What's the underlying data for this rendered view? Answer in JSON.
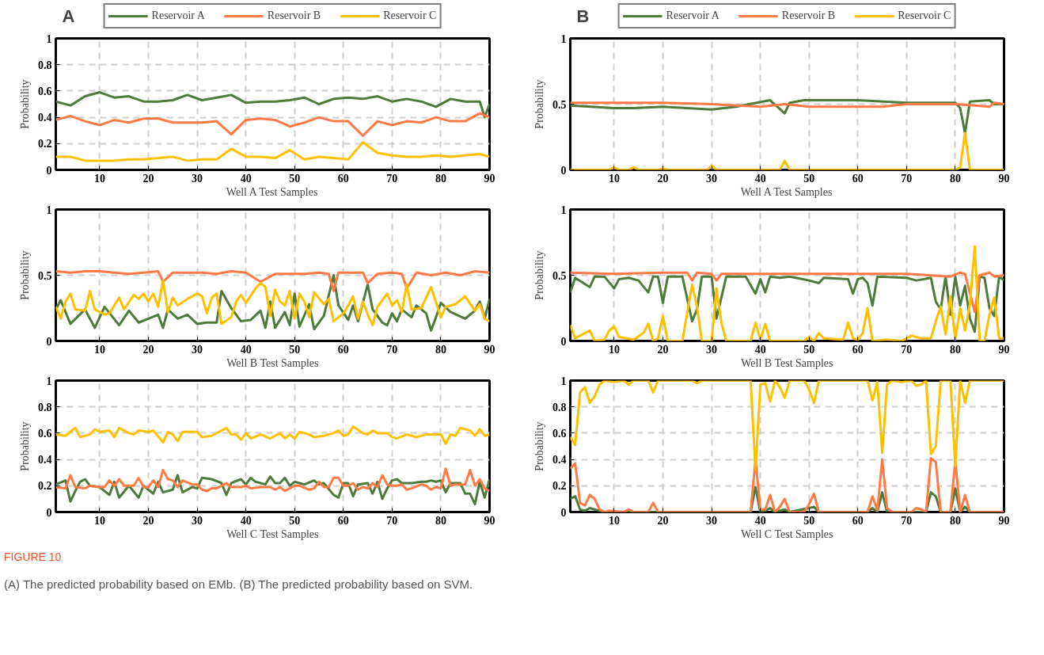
{
  "chart_data": [
    {
      "type": "line",
      "title": "A",
      "xlabel": "Well A Test Samples",
      "ylabel": "Probability",
      "xlim": [
        1,
        90
      ],
      "ylim": [
        0,
        1
      ],
      "xticks": [
        10,
        20,
        30,
        40,
        50,
        60,
        70,
        80,
        90
      ],
      "yticks": [
        0,
        0.2,
        0.4,
        0.6,
        0.8,
        1
      ],
      "grid": true,
      "legend": "top",
      "annotations": [
        "FIGURE 10",
        "(A) The predicted probability based on EMb. (B) The predicted probability based on SVM."
      ],
      "series": [
        {
          "name": "Reservoir A",
          "color": "#4e7a3c",
          "x": [
            1,
            4,
            7,
            10,
            13,
            16,
            19,
            22,
            25,
            28,
            31,
            34,
            37,
            40,
            43,
            46,
            49,
            52,
            55,
            58,
            61,
            64,
            67,
            70,
            73,
            76,
            79,
            82,
            85,
            88,
            89,
            90
          ],
          "values": [
            0.52,
            0.49,
            0.56,
            0.59,
            0.55,
            0.56,
            0.52,
            0.52,
            0.53,
            0.57,
            0.53,
            0.55,
            0.57,
            0.51,
            0.52,
            0.52,
            0.53,
            0.55,
            0.5,
            0.54,
            0.55,
            0.54,
            0.56,
            0.52,
            0.54,
            0.52,
            0.48,
            0.54,
            0.52,
            0.52,
            0.4,
            0.5
          ]
        },
        {
          "name": "Reservoir B",
          "color": "#ff7a45",
          "x": [
            1,
            4,
            7,
            10,
            13,
            16,
            19,
            22,
            25,
            28,
            31,
            34,
            37,
            40,
            43,
            46,
            49,
            52,
            55,
            58,
            61,
            64,
            67,
            70,
            73,
            76,
            79,
            82,
            85,
            88,
            90
          ],
          "values": [
            0.38,
            0.41,
            0.37,
            0.34,
            0.38,
            0.36,
            0.39,
            0.39,
            0.36,
            0.36,
            0.36,
            0.37,
            0.27,
            0.38,
            0.39,
            0.38,
            0.33,
            0.36,
            0.4,
            0.37,
            0.37,
            0.26,
            0.37,
            0.34,
            0.37,
            0.36,
            0.4,
            0.37,
            0.37,
            0.43,
            0.4
          ]
        },
        {
          "name": "Reservoir C",
          "color": "#ffc000",
          "x": [
            1,
            4,
            7,
            10,
            13,
            16,
            19,
            22,
            25,
            28,
            31,
            34,
            37,
            40,
            43,
            46,
            49,
            52,
            55,
            58,
            61,
            64,
            67,
            70,
            73,
            76,
            79,
            82,
            85,
            88,
            90
          ],
          "values": [
            0.1,
            0.1,
            0.07,
            0.07,
            0.07,
            0.08,
            0.08,
            0.09,
            0.1,
            0.07,
            0.08,
            0.08,
            0.16,
            0.1,
            0.1,
            0.09,
            0.15,
            0.08,
            0.1,
            0.09,
            0.08,
            0.21,
            0.13,
            0.11,
            0.1,
            0.1,
            0.11,
            0.1,
            0.11,
            0.12,
            0.1
          ]
        }
      ]
    },
    {
      "type": "line",
      "title": "B",
      "xlabel": "Well A Test Samples",
      "ylabel": "Probability",
      "xlim": [
        1,
        90
      ],
      "ylim": [
        0,
        1
      ],
      "xticks": [
        10,
        20,
        30,
        40,
        50,
        60,
        70,
        80,
        90
      ],
      "yticks": [
        0,
        0.5,
        1
      ],
      "grid": true,
      "legend": "top",
      "series": [
        {
          "name": "Reservoir A",
          "color": "#4e7a3c",
          "x": [
            1,
            10,
            14,
            20,
            30,
            35,
            42,
            45,
            46,
            49,
            60,
            70,
            80,
            81,
            82,
            83,
            87,
            88,
            90
          ],
          "values": [
            0.49,
            0.47,
            0.47,
            0.48,
            0.46,
            0.48,
            0.53,
            0.43,
            0.51,
            0.53,
            0.53,
            0.51,
            0.51,
            0.47,
            0.28,
            0.52,
            0.53,
            0.5,
            0.5
          ]
        },
        {
          "name": "Reservoir B",
          "color": "#ff7a45",
          "x": [
            1,
            10,
            20,
            30,
            40,
            45,
            50,
            60,
            65,
            70,
            80,
            84,
            87,
            88,
            90
          ],
          "values": [
            0.51,
            0.51,
            0.51,
            0.5,
            0.48,
            0.5,
            0.48,
            0.48,
            0.48,
            0.5,
            0.5,
            0.49,
            0.48,
            0.51,
            0.5
          ]
        },
        {
          "name": "Reservoir C",
          "color": "#ffc000",
          "x": [
            1,
            9,
            10,
            11,
            13,
            14,
            15,
            19,
            20,
            21,
            29,
            30,
            31,
            44,
            45,
            46,
            80,
            81,
            82,
            83,
            90
          ],
          "values": [
            0,
            0,
            0.02,
            0,
            0,
            0.02,
            0,
            0,
            0.01,
            0,
            0,
            0.03,
            0,
            0,
            0.07,
            0,
            0,
            0.02,
            0.28,
            0,
            0
          ]
        }
      ]
    },
    {
      "type": "line",
      "xlabel": "Well B Test Samples",
      "ylabel": "Probability",
      "xlim": [
        1,
        90
      ],
      "ylim": [
        0,
        1
      ],
      "xticks": [
        10,
        20,
        30,
        40,
        50,
        60,
        70,
        80,
        90
      ],
      "yticks": [
        0,
        0.5,
        1
      ],
      "grid": true,
      "series": [
        {
          "color": "#4e7a3c",
          "x": [
            1,
            2,
            4,
            7,
            9,
            11,
            14,
            16,
            18,
            20,
            22,
            23,
            24,
            26,
            28,
            30,
            32,
            34,
            35,
            37,
            39,
            41,
            43,
            44,
            45,
            46,
            48,
            49,
            50,
            51,
            53,
            54,
            56,
            58,
            59,
            61,
            62,
            63,
            65,
            66,
            68,
            69,
            70,
            71,
            72,
            74,
            75,
            77,
            78,
            79,
            80,
            82,
            85,
            87,
            88,
            89,
            90
          ],
          "values": [
            0.24,
            0.31,
            0.13,
            0.24,
            0.1,
            0.26,
            0.12,
            0.23,
            0.14,
            0.17,
            0.2,
            0.1,
            0.24,
            0.17,
            0.2,
            0.13,
            0.14,
            0.14,
            0.38,
            0.25,
            0.15,
            0.16,
            0.23,
            0.1,
            0.3,
            0.1,
            0.22,
            0.12,
            0.36,
            0.11,
            0.28,
            0.09,
            0.19,
            0.5,
            0.27,
            0.16,
            0.27,
            0.15,
            0.43,
            0.24,
            0.14,
            0.12,
            0.21,
            0.15,
            0.24,
            0.18,
            0.27,
            0.21,
            0.08,
            0.18,
            0.29,
            0.22,
            0.17,
            0.23,
            0.3,
            0.17,
            0.32
          ]
        },
        {
          "color": "#ff7a45",
          "x": [
            1,
            4,
            7,
            10,
            13,
            16,
            19,
            22,
            23,
            25,
            28,
            31,
            34,
            37,
            40,
            43,
            46,
            49,
            52,
            55,
            57,
            58,
            59,
            62,
            64,
            65,
            67,
            70,
            72,
            73,
            75,
            78,
            81,
            84,
            87,
            90
          ],
          "values": [
            0.53,
            0.52,
            0.53,
            0.53,
            0.52,
            0.51,
            0.52,
            0.53,
            0.45,
            0.52,
            0.52,
            0.52,
            0.51,
            0.53,
            0.52,
            0.45,
            0.51,
            0.51,
            0.51,
            0.52,
            0.51,
            0.38,
            0.52,
            0.52,
            0.52,
            0.44,
            0.51,
            0.52,
            0.51,
            0.4,
            0.52,
            0.5,
            0.52,
            0.5,
            0.53,
            0.52
          ]
        },
        {
          "color": "#ffc000",
          "x": [
            1,
            2,
            3,
            4,
            5,
            7,
            8,
            9,
            11,
            12,
            14,
            15,
            17,
            18,
            19,
            20,
            21,
            22,
            23,
            24,
            25,
            26,
            28,
            30,
            31,
            32,
            33,
            34,
            35,
            37,
            38,
            39,
            40,
            42,
            43,
            44,
            45,
            46,
            47,
            48,
            49,
            50,
            51,
            52,
            53,
            54,
            56,
            57,
            58,
            60,
            61,
            62,
            63,
            64,
            65,
            66,
            67,
            69,
            70,
            71,
            72,
            73,
            74,
            76,
            78,
            80,
            81,
            83,
            85,
            87,
            88,
            89,
            90
          ],
          "values": [
            0.26,
            0.17,
            0.3,
            0.36,
            0.24,
            0.23,
            0.38,
            0.24,
            0.2,
            0.21,
            0.33,
            0.24,
            0.35,
            0.32,
            0.36,
            0.3,
            0.36,
            0.26,
            0.46,
            0.22,
            0.33,
            0.27,
            0.32,
            0.36,
            0.34,
            0.21,
            0.33,
            0.36,
            0.13,
            0.18,
            0.3,
            0.35,
            0.29,
            0.4,
            0.44,
            0.41,
            0.19,
            0.39,
            0.3,
            0.27,
            0.38,
            0.17,
            0.36,
            0.3,
            0.18,
            0.37,
            0.28,
            0.32,
            0.15,
            0.21,
            0.27,
            0.34,
            0.17,
            0.3,
            0.2,
            0.12,
            0.26,
            0.36,
            0.27,
            0.31,
            0.22,
            0.43,
            0.24,
            0.25,
            0.41,
            0.18,
            0.26,
            0.28,
            0.34,
            0.23,
            0.28,
            0.17,
            0.15
          ]
        }
      ]
    },
    {
      "type": "line",
      "xlabel": "Well B Test Samples",
      "ylabel": "Probability",
      "xlim": [
        1,
        90
      ],
      "ylim": [
        0,
        1
      ],
      "xticks": [
        10,
        20,
        30,
        40,
        50,
        60,
        70,
        80,
        90
      ],
      "yticks": [
        0,
        0.5,
        1
      ],
      "grid": true,
      "series": [
        {
          "color": "#4e7a3c",
          "x": [
            1,
            2,
            5,
            6,
            8,
            10,
            11,
            13,
            15,
            17,
            18,
            19,
            20,
            21,
            24,
            26,
            27,
            28,
            30,
            31,
            33,
            37,
            39,
            40,
            41,
            42,
            44,
            46,
            50,
            52,
            53,
            58,
            59,
            60,
            61,
            62,
            63,
            64,
            70,
            72,
            75,
            76,
            77,
            78,
            79,
            80,
            81,
            82,
            83,
            84,
            85,
            86,
            87,
            88,
            89,
            90
          ],
          "values": [
            0.37,
            0.48,
            0.41,
            0.49,
            0.49,
            0.4,
            0.47,
            0.48,
            0.46,
            0.37,
            0.49,
            0.49,
            0.29,
            0.49,
            0.49,
            0.15,
            0.24,
            0.49,
            0.49,
            0.17,
            0.49,
            0.49,
            0.36,
            0.47,
            0.37,
            0.49,
            0.48,
            0.49,
            0.46,
            0.44,
            0.48,
            0.47,
            0.36,
            0.47,
            0.48,
            0.44,
            0.27,
            0.49,
            0.48,
            0.46,
            0.48,
            0.3,
            0.24,
            0.49,
            0.2,
            0.49,
            0.27,
            0.42,
            0.17,
            0.07,
            0.49,
            0.48,
            0.25,
            0.19,
            0.49,
            0.46
          ]
        },
        {
          "color": "#ff7a45",
          "x": [
            1,
            10,
            20,
            25,
            26,
            27,
            30,
            31,
            32,
            40,
            50,
            60,
            70,
            79,
            81,
            82,
            84,
            85,
            87,
            88,
            90
          ],
          "values": [
            0.52,
            0.51,
            0.52,
            0.52,
            0.46,
            0.52,
            0.51,
            0.46,
            0.51,
            0.51,
            0.51,
            0.51,
            0.51,
            0.49,
            0.52,
            0.51,
            0.22,
            0.5,
            0.52,
            0.49,
            0.5
          ]
        },
        {
          "color": "#ffc000",
          "x": [
            1,
            2,
            5,
            6,
            8,
            9,
            10,
            11,
            14,
            16,
            17,
            18,
            19,
            20,
            21,
            24,
            26,
            27,
            28,
            30,
            31,
            32,
            33,
            38,
            39,
            40,
            41,
            42,
            49,
            50,
            51,
            52,
            53,
            57,
            58,
            59,
            60,
            61,
            62,
            63,
            66,
            69,
            71,
            73,
            75,
            76,
            77,
            78,
            79,
            80,
            81,
            82,
            83,
            84,
            85,
            86,
            87,
            88,
            89,
            90
          ],
          "values": [
            0.12,
            0.02,
            0.08,
            0,
            0.01,
            0.08,
            0.11,
            0.03,
            0.01,
            0.06,
            0.13,
            0,
            0.02,
            0.19,
            0,
            0,
            0.43,
            0.26,
            0,
            0,
            0.4,
            0.14,
            0,
            0,
            0.14,
            0.01,
            0.13,
            0,
            0,
            0.03,
            0,
            0.06,
            0.02,
            0.01,
            0.14,
            0.02,
            0.01,
            0.06,
            0.25,
            0,
            0.01,
            0,
            0.04,
            0.02,
            0.02,
            0.15,
            0.26,
            0.05,
            0.34,
            0.01,
            0.25,
            0.08,
            0.28,
            0.72,
            0,
            0,
            0.2,
            0.33,
            0.02,
            0.02
          ]
        }
      ]
    },
    {
      "type": "line",
      "xlabel": "Well C Test Samples",
      "ylabel": "Probability",
      "xlim": [
        1,
        90
      ],
      "ylim": [
        0,
        1
      ],
      "xticks": [
        10,
        20,
        30,
        40,
        50,
        60,
        70,
        80,
        90
      ],
      "yticks": [
        0,
        0.2,
        0.4,
        0.6,
        0.8,
        1
      ],
      "grid": true,
      "series": [
        {
          "color": "#4e7a3c",
          "x": [
            1,
            3,
            4,
            5,
            6,
            7,
            8,
            10,
            12,
            13,
            14,
            16,
            18,
            19,
            21,
            22,
            23,
            25,
            26,
            27,
            29,
            30,
            31,
            33,
            35,
            36,
            37,
            39,
            40,
            41,
            42,
            44,
            45,
            46,
            47,
            48,
            49,
            50,
            52,
            54,
            55,
            56,
            58,
            59,
            60,
            61,
            62,
            63,
            65,
            66,
            67,
            68,
            69,
            70,
            71,
            72,
            74,
            76,
            77,
            78,
            79,
            80,
            81,
            82,
            84,
            85,
            86,
            87,
            88,
            89,
            90
          ],
          "values": [
            0.21,
            0.24,
            0.08,
            0.16,
            0.23,
            0.25,
            0.2,
            0.19,
            0.13,
            0.23,
            0.11,
            0.2,
            0.11,
            0.2,
            0.14,
            0.23,
            0.15,
            0.17,
            0.28,
            0.15,
            0.19,
            0.18,
            0.26,
            0.25,
            0.22,
            0.13,
            0.22,
            0.25,
            0.21,
            0.26,
            0.23,
            0.21,
            0.27,
            0.22,
            0.22,
            0.26,
            0.2,
            0.23,
            0.21,
            0.24,
            0.21,
            0.22,
            0.13,
            0.11,
            0.22,
            0.22,
            0.12,
            0.21,
            0.22,
            0.14,
            0.23,
            0.1,
            0.18,
            0.24,
            0.25,
            0.22,
            0.22,
            0.23,
            0.23,
            0.24,
            0.23,
            0.24,
            0.15,
            0.22,
            0.22,
            0.14,
            0.14,
            0.06,
            0.23,
            0.11,
            0.25
          ]
        },
        {
          "color": "#ff7a45",
          "x": [
            1,
            3,
            4,
            5,
            7,
            8,
            10,
            11,
            12,
            13,
            14,
            15,
            17,
            18,
            19,
            20,
            21,
            22,
            23,
            24,
            25,
            26,
            27,
            29,
            30,
            31,
            32,
            33,
            34,
            36,
            37,
            39,
            40,
            41,
            43,
            45,
            46,
            47,
            48,
            50,
            51,
            53,
            54,
            55,
            56,
            57,
            58,
            59,
            60,
            61,
            62,
            63,
            64,
            65,
            66,
            67,
            68,
            69,
            70,
            71,
            72,
            73,
            74,
            76,
            77,
            78,
            79,
            80,
            81,
            82,
            83,
            85,
            86,
            87,
            88,
            89,
            90
          ],
          "values": [
            0.19,
            0.18,
            0.28,
            0.19,
            0.18,
            0.2,
            0.19,
            0.19,
            0.24,
            0.2,
            0.25,
            0.2,
            0.2,
            0.26,
            0.19,
            0.19,
            0.24,
            0.19,
            0.32,
            0.25,
            0.24,
            0.19,
            0.24,
            0.21,
            0.21,
            0.17,
            0.16,
            0.18,
            0.18,
            0.22,
            0.19,
            0.19,
            0.2,
            0.18,
            0.19,
            0.19,
            0.17,
            0.19,
            0.16,
            0.2,
            0.2,
            0.17,
            0.18,
            0.23,
            0.19,
            0.19,
            0.26,
            0.26,
            0.2,
            0.2,
            0.22,
            0.17,
            0.19,
            0.18,
            0.22,
            0.19,
            0.28,
            0.21,
            0.2,
            0.2,
            0.21,
            0.17,
            0.18,
            0.21,
            0.2,
            0.17,
            0.19,
            0.18,
            0.33,
            0.2,
            0.21,
            0.21,
            0.32,
            0.2,
            0.25,
            0.18,
            0.16
          ]
        },
        {
          "color": "#ffc000",
          "x": [
            1,
            3,
            5,
            6,
            8,
            9,
            10,
            12,
            13,
            14,
            16,
            17,
            18,
            20,
            21,
            23,
            24,
            25,
            26,
            27,
            30,
            31,
            33,
            36,
            37,
            38,
            39,
            40,
            41,
            43,
            45,
            47,
            48,
            49,
            50,
            51,
            53,
            54,
            56,
            58,
            59,
            60,
            61,
            62,
            64,
            65,
            66,
            67,
            69,
            70,
            71,
            73,
            75,
            77,
            79,
            80,
            81,
            82,
            83,
            84,
            86,
            87,
            88,
            89,
            90
          ],
          "values": [
            0.59,
            0.58,
            0.64,
            0.57,
            0.59,
            0.63,
            0.61,
            0.62,
            0.57,
            0.64,
            0.6,
            0.59,
            0.62,
            0.61,
            0.62,
            0.53,
            0.61,
            0.59,
            0.54,
            0.61,
            0.61,
            0.57,
            0.58,
            0.64,
            0.59,
            0.59,
            0.55,
            0.6,
            0.56,
            0.59,
            0.56,
            0.6,
            0.56,
            0.59,
            0.56,
            0.61,
            0.59,
            0.57,
            0.58,
            0.6,
            0.62,
            0.58,
            0.59,
            0.65,
            0.6,
            0.59,
            0.62,
            0.6,
            0.6,
            0.57,
            0.56,
            0.59,
            0.57,
            0.59,
            0.59,
            0.59,
            0.52,
            0.59,
            0.58,
            0.64,
            0.62,
            0.58,
            0.63,
            0.58,
            0.59
          ]
        }
      ]
    },
    {
      "type": "line",
      "xlabel": "Well C Test Samples",
      "ylabel": "Probability",
      "xlim": [
        1,
        90
      ],
      "ylim": [
        0,
        1
      ],
      "xticks": [
        10,
        20,
        30,
        40,
        50,
        60,
        70,
        80,
        90
      ],
      "yticks": [
        0,
        0.2,
        0.4,
        0.6,
        0.8,
        1
      ],
      "grid": true,
      "series": [
        {
          "color": "#4e7a3c",
          "x": [
            1,
            2,
            3,
            4,
            5,
            6,
            7,
            8,
            38,
            39,
            40,
            41,
            42,
            43,
            45,
            46,
            50,
            51,
            52,
            62,
            63,
            64,
            65,
            66,
            74,
            75,
            76,
            77,
            79,
            80,
            81,
            82,
            83,
            90
          ],
          "values": [
            0.1,
            0.12,
            0.02,
            0.01,
            0.03,
            0.02,
            0.01,
            0,
            0,
            0.19,
            0,
            0.01,
            0.03,
            0,
            0.02,
            0,
            0.03,
            0.04,
            0,
            0,
            0.03,
            0,
            0.15,
            0,
            0,
            0.15,
            0.12,
            0,
            0,
            0.18,
            0,
            0.04,
            0,
            0
          ]
        },
        {
          "color": "#ff7a45",
          "x": [
            1,
            2,
            3,
            4,
            5,
            6,
            7,
            8,
            9,
            12,
            13,
            14,
            17,
            18,
            19,
            38,
            39,
            40,
            41,
            42,
            43,
            44,
            45,
            46,
            49,
            50,
            51,
            52,
            62,
            63,
            64,
            65,
            66,
            67,
            71,
            72,
            73,
            74,
            75,
            76,
            77,
            79,
            80,
            81,
            82,
            83,
            90
          ],
          "values": [
            0.33,
            0.37,
            0.07,
            0.05,
            0.13,
            0.1,
            0.02,
            0,
            0.01,
            0,
            0.02,
            0,
            0,
            0.07,
            0,
            0,
            0.4,
            0.02,
            0.02,
            0.13,
            0,
            0.04,
            0.1,
            0,
            0,
            0.06,
            0.14,
            0,
            0,
            0.12,
            0.01,
            0.4,
            0.03,
            0,
            0,
            0.03,
            0.02,
            0,
            0.41,
            0.38,
            0,
            0,
            0.39,
            0,
            0.13,
            0,
            0
          ]
        },
        {
          "color": "#ffc000",
          "x": [
            1,
            2,
            3,
            4,
            5,
            6,
            7,
            8,
            10,
            12,
            13,
            14,
            17,
            18,
            19,
            26,
            27,
            28,
            38,
            39,
            40,
            41,
            42,
            43,
            44,
            45,
            46,
            49,
            50,
            51,
            52,
            62,
            63,
            64,
            65,
            66,
            67,
            69,
            71,
            72,
            73,
            74,
            75,
            76,
            77,
            79,
            80,
            81,
            82,
            83,
            90
          ],
          "values": [
            0.57,
            0.51,
            0.91,
            0.95,
            0.83,
            0.88,
            0.97,
            1,
            0.99,
            1,
            0.97,
            1,
            1,
            0.91,
            1,
            1,
            0.98,
            1,
            1,
            0.32,
            0.97,
            0.98,
            0.84,
            1,
            0.95,
            0.87,
            1,
            1,
            0.93,
            0.83,
            1,
            1,
            0.85,
            0.99,
            0.45,
            0.97,
            1,
            0.99,
            1,
            0.96,
            0.97,
            1,
            0.44,
            0.5,
            1,
            1,
            0.35,
            1,
            0.83,
            1,
            1
          ]
        }
      ]
    }
  ]
}
